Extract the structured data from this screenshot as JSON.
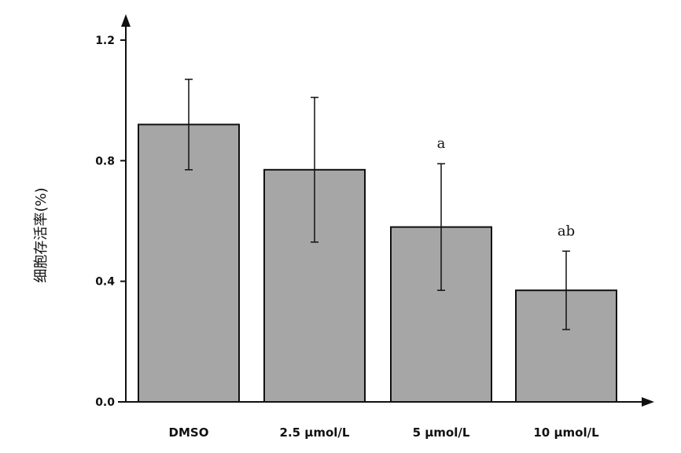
{
  "chart_data": {
    "type": "bar",
    "title": "",
    "xlabel": "",
    "ylabel": "细胞存活率(%)",
    "categories": [
      "DMSO",
      "2.5 μmol/L",
      "5 μmol/L",
      "10 μmol/L"
    ],
    "values": [
      0.92,
      0.77,
      0.58,
      0.37
    ],
    "error_low": [
      0.77,
      0.53,
      0.37,
      0.24
    ],
    "error_high": [
      1.07,
      1.01,
      0.79,
      0.5
    ],
    "annotations": [
      "",
      "",
      "a",
      "ab"
    ],
    "ylim": [
      0.0,
      1.2
    ],
    "yticks": [
      0.0,
      0.4,
      0.8,
      1.2
    ],
    "ytick_labels": [
      "0.0",
      "0.4",
      "0.8",
      "1.2"
    ],
    "grid": false,
    "bar_color": "#a6a6a6",
    "edge_color": "#111111"
  }
}
